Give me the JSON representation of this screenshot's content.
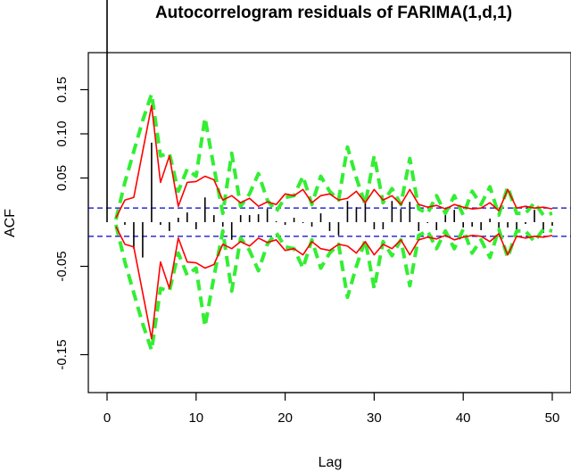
{
  "chart_data": {
    "type": "line",
    "title": "Autocorrelogram residuals of FARIMA(1,d,1)",
    "xlabel": "Lag",
    "ylabel": "ACF",
    "xlim": [
      0,
      50
    ],
    "ylim": [
      -0.19,
      0.18
    ],
    "xticks": [
      0,
      10,
      20,
      30,
      40,
      50
    ],
    "yticks": [
      -0.15,
      -0.05,
      0.05,
      0.1,
      0.15
    ],
    "grid": false,
    "legend": "none",
    "colors": {
      "acf_bars": "#000000",
      "red_band": "#ff0000",
      "green_band": "#33ee33",
      "confidence_line": "#0000cc"
    },
    "confidence_level": 0.016,
    "acf": {
      "lags": [
        0,
        1,
        2,
        3,
        4,
        5,
        6,
        7,
        8,
        9,
        10,
        11,
        12,
        13,
        14,
        15,
        16,
        17,
        18,
        19,
        20,
        21,
        22,
        23,
        24,
        25,
        26,
        27,
        28,
        29,
        30,
        31,
        32,
        33,
        34,
        35,
        36,
        37,
        38,
        39,
        40,
        41,
        42,
        43,
        44,
        45,
        46,
        47,
        48,
        49,
        50
      ],
      "values": [
        1.0,
        0.0,
        -0.003,
        -0.03,
        -0.04,
        0.09,
        -0.003,
        -0.01,
        0.005,
        0.011,
        -0.008,
        0.028,
        0.008,
        -0.005,
        -0.02,
        0.008,
        0.008,
        0.009,
        0.015,
        0.001,
        -0.003,
        0.005,
        -0.001,
        -0.005,
        0.01,
        -0.01,
        -0.015,
        0.024,
        0.017,
        0.026,
        -0.008,
        -0.008,
        0.024,
        0.015,
        0.023,
        -0.01,
        -0.001,
        -0.009,
        0.012,
        0.014,
        -0.006,
        -0.005,
        -0.009,
        0.004,
        -0.007,
        -0.006,
        -0.012,
        -0.002,
        0.014,
        -0.012,
        -0.004
      ]
    },
    "series": [
      {
        "name": "",
        "style": "red-solid",
        "upper": [
          0.0,
          0.005,
          0.025,
          0.028,
          0.08,
          0.132,
          0.045,
          0.075,
          0.018,
          0.045,
          0.046,
          0.052,
          0.048,
          0.025,
          0.03,
          0.022,
          0.027,
          0.018,
          0.023,
          0.02,
          0.032,
          0.03,
          0.037,
          0.022,
          0.03,
          0.032,
          0.025,
          0.027,
          0.035,
          0.022,
          0.037,
          0.025,
          0.03,
          0.02,
          0.037,
          0.02,
          0.017,
          0.019,
          0.015,
          0.02,
          0.017,
          0.015,
          0.016,
          0.022,
          0.013,
          0.037,
          0.016,
          0.018,
          0.016,
          0.017,
          0.015
        ],
        "lower": [
          0.0,
          -0.005,
          -0.025,
          -0.028,
          -0.08,
          -0.132,
          -0.045,
          -0.075,
          -0.018,
          -0.045,
          -0.046,
          -0.052,
          -0.048,
          -0.025,
          -0.03,
          -0.022,
          -0.027,
          -0.018,
          -0.023,
          -0.02,
          -0.032,
          -0.03,
          -0.037,
          -0.022,
          -0.03,
          -0.032,
          -0.025,
          -0.027,
          -0.035,
          -0.022,
          -0.037,
          -0.025,
          -0.03,
          -0.02,
          -0.037,
          -0.02,
          -0.017,
          -0.019,
          -0.015,
          -0.02,
          -0.017,
          -0.015,
          -0.016,
          -0.022,
          -0.013,
          -0.037,
          -0.016,
          -0.018,
          -0.016,
          -0.017,
          -0.015
        ]
      },
      {
        "name": "",
        "style": "green-dashed",
        "upper": [
          0.0,
          0.003,
          0.045,
          0.08,
          0.115,
          0.145,
          0.075,
          0.078,
          0.035,
          0.06,
          0.052,
          0.118,
          0.062,
          0.01,
          0.078,
          0.018,
          0.032,
          0.055,
          0.025,
          0.012,
          0.028,
          0.03,
          0.052,
          0.02,
          0.052,
          0.035,
          0.025,
          0.085,
          0.05,
          0.02,
          0.075,
          0.022,
          0.038,
          0.02,
          0.072,
          0.015,
          0.01,
          0.03,
          0.01,
          0.03,
          0.008,
          0.035,
          0.02,
          0.04,
          0.008,
          0.04,
          0.01,
          0.01,
          0.022,
          0.008,
          0.01
        ],
        "lower": [
          0.0,
          -0.003,
          -0.045,
          -0.08,
          -0.115,
          -0.145,
          -0.075,
          -0.078,
          -0.035,
          -0.06,
          -0.052,
          -0.118,
          -0.062,
          -0.01,
          -0.078,
          -0.018,
          -0.032,
          -0.055,
          -0.025,
          -0.012,
          -0.028,
          -0.03,
          -0.052,
          -0.02,
          -0.052,
          -0.035,
          -0.025,
          -0.085,
          -0.05,
          -0.02,
          -0.075,
          -0.022,
          -0.038,
          -0.02,
          -0.072,
          -0.015,
          -0.01,
          -0.03,
          -0.01,
          -0.03,
          -0.008,
          -0.035,
          -0.02,
          -0.04,
          -0.008,
          -0.04,
          -0.01,
          -0.01,
          -0.022,
          -0.008,
          -0.01
        ]
      }
    ]
  }
}
